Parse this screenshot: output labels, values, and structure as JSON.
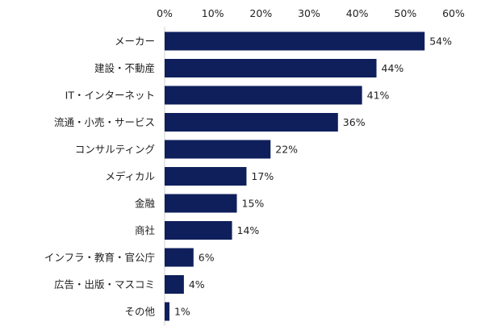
{
  "chart_data": {
    "type": "bar",
    "orientation": "horizontal",
    "categories": [
      "メーカー",
      "建設・不動産",
      "IT・インターネット",
      "流通・小売・サービス",
      "コンサルティング",
      "メディカル",
      "金融",
      "商社",
      "インフラ・教育・官公庁",
      "広告・出版・マスコミ",
      "その他"
    ],
    "values": [
      54,
      44,
      41,
      36,
      22,
      17,
      15,
      14,
      6,
      4,
      1
    ],
    "value_labels": [
      "54%",
      "44%",
      "41%",
      "36%",
      "22%",
      "17%",
      "15%",
      "14%",
      "6%",
      "4%",
      "1%"
    ],
    "x_ticks": [
      "0%",
      "10%",
      "20%",
      "30%",
      "40%",
      "50%",
      "60%"
    ],
    "xlim": [
      0,
      60
    ],
    "axis_position": "top",
    "grid": false,
    "legend": "none",
    "bar_color": "#0f1f5c",
    "title": "",
    "xlabel": "",
    "ylabel": ""
  }
}
